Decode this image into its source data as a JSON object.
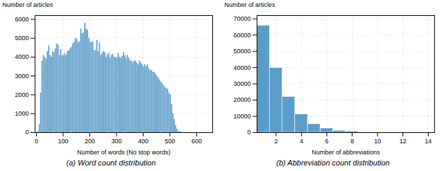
{
  "chart_data": [
    {
      "type": "histogram",
      "title": "(a) Word count distribution",
      "xlabel": "Number of words (No stop words)",
      "ylabel": "Number of articles",
      "bins": [
        0,
        5,
        10,
        15,
        20,
        25,
        30,
        35,
        40,
        45,
        50,
        55,
        60,
        65,
        70,
        75,
        80,
        85,
        90,
        95,
        100,
        105,
        110,
        115,
        120,
        125,
        130,
        135,
        140,
        145,
        150,
        155,
        160,
        165,
        170,
        175,
        180,
        185,
        190,
        195,
        200,
        205,
        210,
        215,
        220,
        225,
        230,
        235,
        240,
        245,
        250,
        255,
        260,
        265,
        270,
        275,
        280,
        285,
        290,
        295,
        300,
        305,
        310,
        315,
        320,
        325,
        330,
        335,
        340,
        345,
        350,
        355,
        360,
        365,
        370,
        375,
        380,
        385,
        390,
        395,
        400,
        405,
        410,
        415,
        420,
        425,
        430,
        435,
        440,
        445,
        450,
        455,
        460,
        465,
        470,
        475,
        480,
        485,
        490,
        495,
        500,
        505,
        510,
        515,
        520,
        525,
        530,
        535,
        540,
        545,
        550,
        555,
        560,
        565,
        570,
        575,
        580,
        585,
        590,
        595,
        600,
        605,
        610,
        615,
        620,
        625,
        630,
        635,
        640,
        645,
        650,
        655,
        660
      ],
      "values": [
        10,
        50,
        450,
        2100,
        3800,
        4100,
        4000,
        3900,
        4300,
        4600,
        4100,
        4000,
        4300,
        4250,
        4450,
        4700,
        4650,
        4100,
        4400,
        4100,
        4100,
        4200,
        4100,
        4300,
        4350,
        4450,
        4550,
        4700,
        4800,
        5000,
        4950,
        4800,
        4800,
        5500,
        5250,
        5300,
        5800,
        5500,
        5450,
        5000,
        4800,
        4800,
        4800,
        4350,
        4350,
        4900,
        4300,
        4750,
        4100,
        4200,
        4300,
        4250,
        4000,
        4150,
        4200,
        3950,
        4100,
        4150,
        4000,
        4000,
        3950,
        4200,
        4000,
        3950,
        4050,
        4250,
        4100,
        3950,
        4100,
        3950,
        3800,
        3800,
        3700,
        3800,
        3800,
        3700,
        3600,
        3800,
        3700,
        3600,
        3500,
        3600,
        3500,
        3600,
        3400,
        3300,
        3300,
        3200,
        3200,
        3100,
        3000,
        2900,
        2800,
        2700,
        2600,
        2500,
        2400,
        2350,
        2300,
        2100,
        2000,
        1500,
        1000,
        700,
        400,
        200,
        100,
        60,
        30,
        15,
        10,
        8,
        5,
        4,
        3,
        2,
        2,
        1,
        1,
        1,
        1,
        0,
        0,
        0,
        0,
        0,
        0,
        0,
        0,
        0,
        0,
        0
      ],
      "color": "#5b9dc9",
      "xlim": [
        -5,
        660
      ],
      "xticks": [
        0,
        100,
        200,
        300,
        400,
        500,
        600
      ],
      "ylim": [
        0,
        6200
      ],
      "yticks": [
        0,
        1000,
        2000,
        3000,
        4000,
        5000,
        6000
      ],
      "grid": true
    },
    {
      "type": "bar",
      "title": "(b) Abbreviation count distribution",
      "xlabel": "Number of abbreviations",
      "ylabel": "Number of articles",
      "x": [
        1,
        2,
        3,
        4,
        5,
        6,
        7,
        8,
        9,
        10,
        11,
        12,
        13,
        14
      ],
      "values": [
        65800,
        39800,
        22000,
        11200,
        5200,
        2600,
        1200,
        800,
        300,
        150,
        80,
        40,
        20,
        10
      ],
      "color": "#5b9dc9",
      "xlim": [
        0.5,
        14.5
      ],
      "xticks": [
        2,
        4,
        6,
        8,
        10,
        12,
        14
      ],
      "ylim": [
        0,
        72000
      ],
      "yticks": [
        0,
        10000,
        20000,
        30000,
        40000,
        50000,
        60000,
        70000
      ],
      "grid": true
    }
  ]
}
